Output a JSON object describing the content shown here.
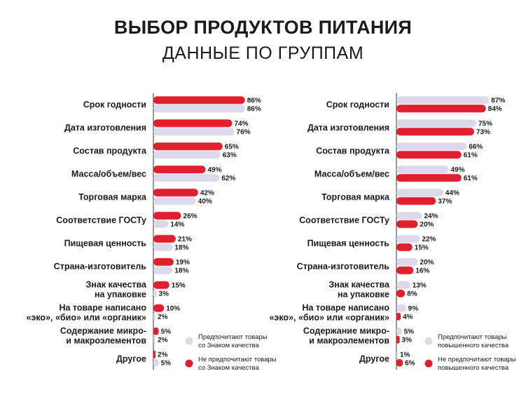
{
  "header": {
    "title": "ВЫБОР ПРОДУКТОВ ПИТАНИЯ",
    "subtitle": "ДАННЫЕ ПО ГРУППАМ"
  },
  "chart_data": [
    {
      "type": "bar",
      "orientation": "horizontal",
      "categories": [
        [
          "Срок годности"
        ],
        [
          "Дата изготовления"
        ],
        [
          "Состав продукта"
        ],
        [
          "Масса/объем/вес"
        ],
        [
          "Торговая марка"
        ],
        [
          "Соответствие ГОСТу"
        ],
        [
          "Пищевая ценность"
        ],
        [
          "Страна-изготовитель"
        ],
        [
          "Знак качества",
          "на упаковке"
        ],
        [
          "На товаре написано",
          "«эко», «био» или «органик»"
        ],
        [
          "Содержание микро-",
          "и макроэлементов"
        ],
        [
          "Другое"
        ]
      ],
      "series": [
        {
          "name": "Не предпочитают товары со Знаком качества",
          "color": "#e0202e",
          "legend": [
            "Не предпочитают товары",
            "со Знаком качества"
          ],
          "values": [
            86,
            74,
            65,
            49,
            42,
            26,
            21,
            19,
            15,
            10,
            5,
            2
          ]
        },
        {
          "name": "Предпочитают товары со Знаком качества",
          "color": "#dcdaea",
          "legend": [
            "Предпочитают товары",
            "со Знаком качества"
          ],
          "values": [
            86,
            76,
            63,
            62,
            40,
            14,
            18,
            18,
            3,
            2,
            2,
            5
          ]
        }
      ],
      "legend_order": [
        1,
        0
      ],
      "xlim": [
        0,
        100
      ],
      "value_suffix": "%"
    },
    {
      "type": "bar",
      "orientation": "horizontal",
      "categories": [
        [
          "Срок годности"
        ],
        [
          "Дата изготовления"
        ],
        [
          "Состав продукта"
        ],
        [
          "Масса/объем/вес"
        ],
        [
          "Торговая марка"
        ],
        [
          "Соответствие ГОСТу"
        ],
        [
          "Пищевая ценность"
        ],
        [
          "Страна-изготовитель"
        ],
        [
          "Знак качества",
          "на упаковке"
        ],
        [
          "На товаре написано",
          "«эко», «био» или «органик»"
        ],
        [
          "Содержание микро-",
          "и макроэлементов"
        ],
        [
          "Другое"
        ]
      ],
      "series": [
        {
          "name": "Предпочитают товары повышенного качества",
          "color": "#dcdaea",
          "legend": [
            "Предпочитают товары",
            "повышенного качества"
          ],
          "values": [
            87,
            75,
            66,
            49,
            44,
            24,
            22,
            20,
            13,
            9,
            5,
            1
          ]
        },
        {
          "name": "Не предпочитают товары повышенного качества",
          "color": "#e0202e",
          "legend": [
            "Не предпочитают товары",
            "повышенного качества"
          ],
          "values": [
            84,
            73,
            61,
            61,
            37,
            20,
            15,
            16,
            8,
            4,
            3,
            6
          ]
        }
      ],
      "legend_order": [
        0,
        1
      ],
      "xlim": [
        0,
        100
      ],
      "value_suffix": "%"
    }
  ]
}
